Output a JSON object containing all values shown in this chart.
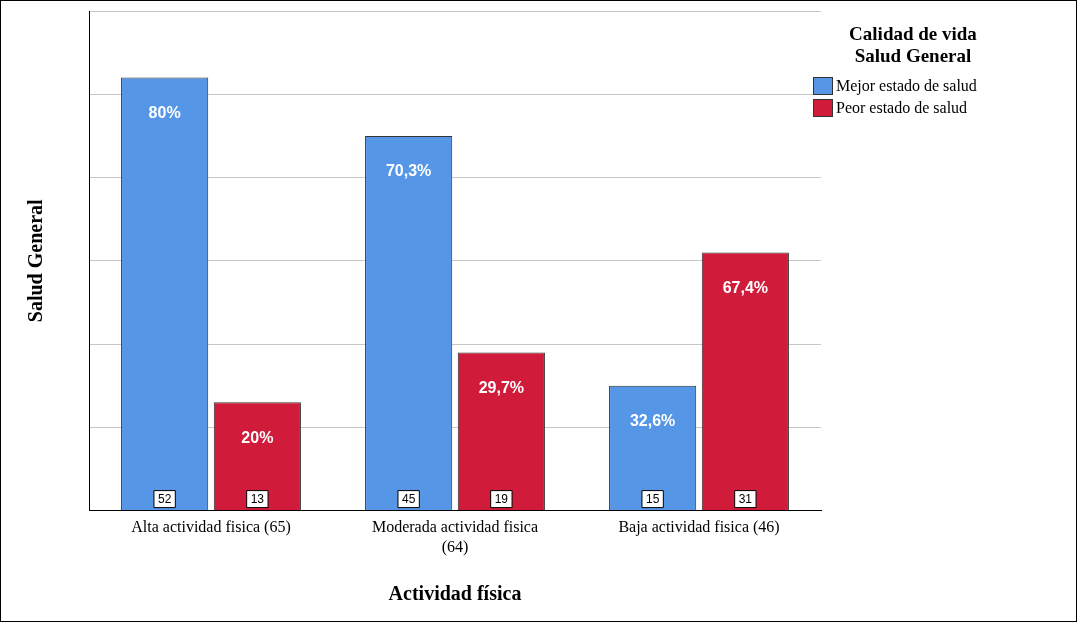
{
  "chart_data": {
    "type": "bar",
    "xlabel": "Actividad física",
    "ylabel": "Salud General",
    "legend_title": "Calidad de vida Salud General",
    "categories": [
      "Alta actividad fisica (65)",
      "Moderada actividad fisica (64)",
      "Baja actividad fisica (46)"
    ],
    "series": [
      {
        "name": "Mejor estado de salud",
        "color": "#5596e6",
        "values": [
          52,
          45,
          15
        ]
      },
      {
        "name": "Peor estado de salud",
        "color": "#d01c3a",
        "values": [
          13,
          19,
          31
        ]
      }
    ],
    "annotations": [
      {
        "text": "80%",
        "x": "Alta actividad fisica (65)",
        "y": 52
      },
      {
        "text": "70,3%",
        "x": "Moderada actividad fisica (64)",
        "y": 45
      },
      {
        "text": "32,6%",
        "x": "Baja actividad fisica (46)",
        "y": 15
      },
      {
        "text": "20%",
        "x": "Alta actividad fisica (65)",
        "y": 13
      },
      {
        "text": "29,7%",
        "x": "Moderada actividad fisica (64)",
        "y": 19
      },
      {
        "text": "67,4%",
        "x": "Baja actividad fisica (46)",
        "y": 31
      }
    ],
    "tick_labels": "x",
    "grid": "y",
    "legend": "top right",
    "data_labels": true
  }
}
